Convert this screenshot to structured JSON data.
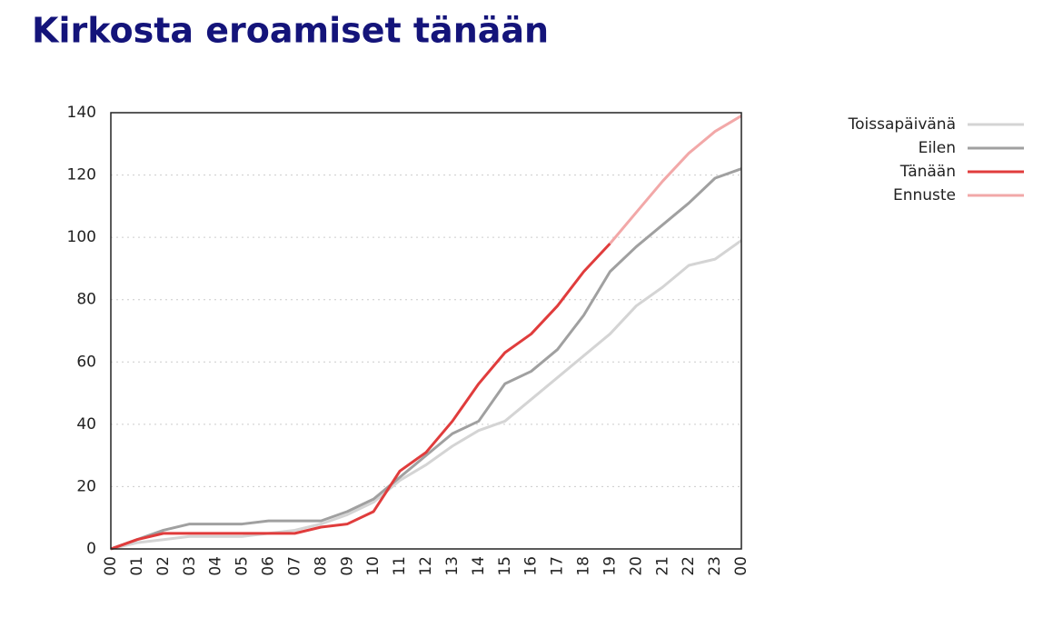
{
  "chart_data": {
    "type": "line",
    "title": "Kirkosta eroamiset tänään",
    "categories": [
      "00",
      "01",
      "02",
      "03",
      "04",
      "05",
      "06",
      "07",
      "08",
      "09",
      "10",
      "11",
      "12",
      "13",
      "14",
      "15",
      "16",
      "17",
      "18",
      "19",
      "20",
      "21",
      "22",
      "23",
      "00"
    ],
    "series": [
      {
        "name": "Toissapäivänä",
        "color": "#d4d4d4",
        "values": [
          0,
          2,
          3,
          4,
          4,
          4,
          5,
          6,
          8,
          11,
          15,
          22,
          27,
          33,
          38,
          41,
          48,
          55,
          62,
          69,
          78,
          84,
          91,
          93,
          99
        ]
      },
      {
        "name": "Eilen",
        "color": "#a0a0a0",
        "values": [
          0,
          3,
          6,
          8,
          8,
          8,
          9,
          9,
          9,
          12,
          16,
          23,
          30,
          37,
          41,
          53,
          57,
          64,
          75,
          89,
          97,
          104,
          111,
          119,
          122
        ]
      },
      {
        "name": "Tänään",
        "color": "#e03c3c",
        "values": [
          0,
          3,
          5,
          5,
          5,
          5,
          5,
          5,
          7,
          8,
          12,
          25,
          31,
          41,
          53,
          63,
          69,
          78,
          89,
          98,
          null,
          null,
          null,
          null,
          null
        ]
      },
      {
        "name": "Ennuste",
        "color": "#f2a8a8",
        "values": [
          null,
          null,
          null,
          null,
          null,
          null,
          null,
          null,
          null,
          null,
          null,
          null,
          null,
          null,
          null,
          null,
          null,
          null,
          null,
          98,
          108,
          118,
          127,
          134,
          139
        ]
      }
    ],
    "ylim": [
      0,
      140
    ],
    "yticks": [
      0,
      20,
      40,
      60,
      80,
      100,
      120,
      140
    ],
    "grid": true,
    "legend": "right"
  }
}
